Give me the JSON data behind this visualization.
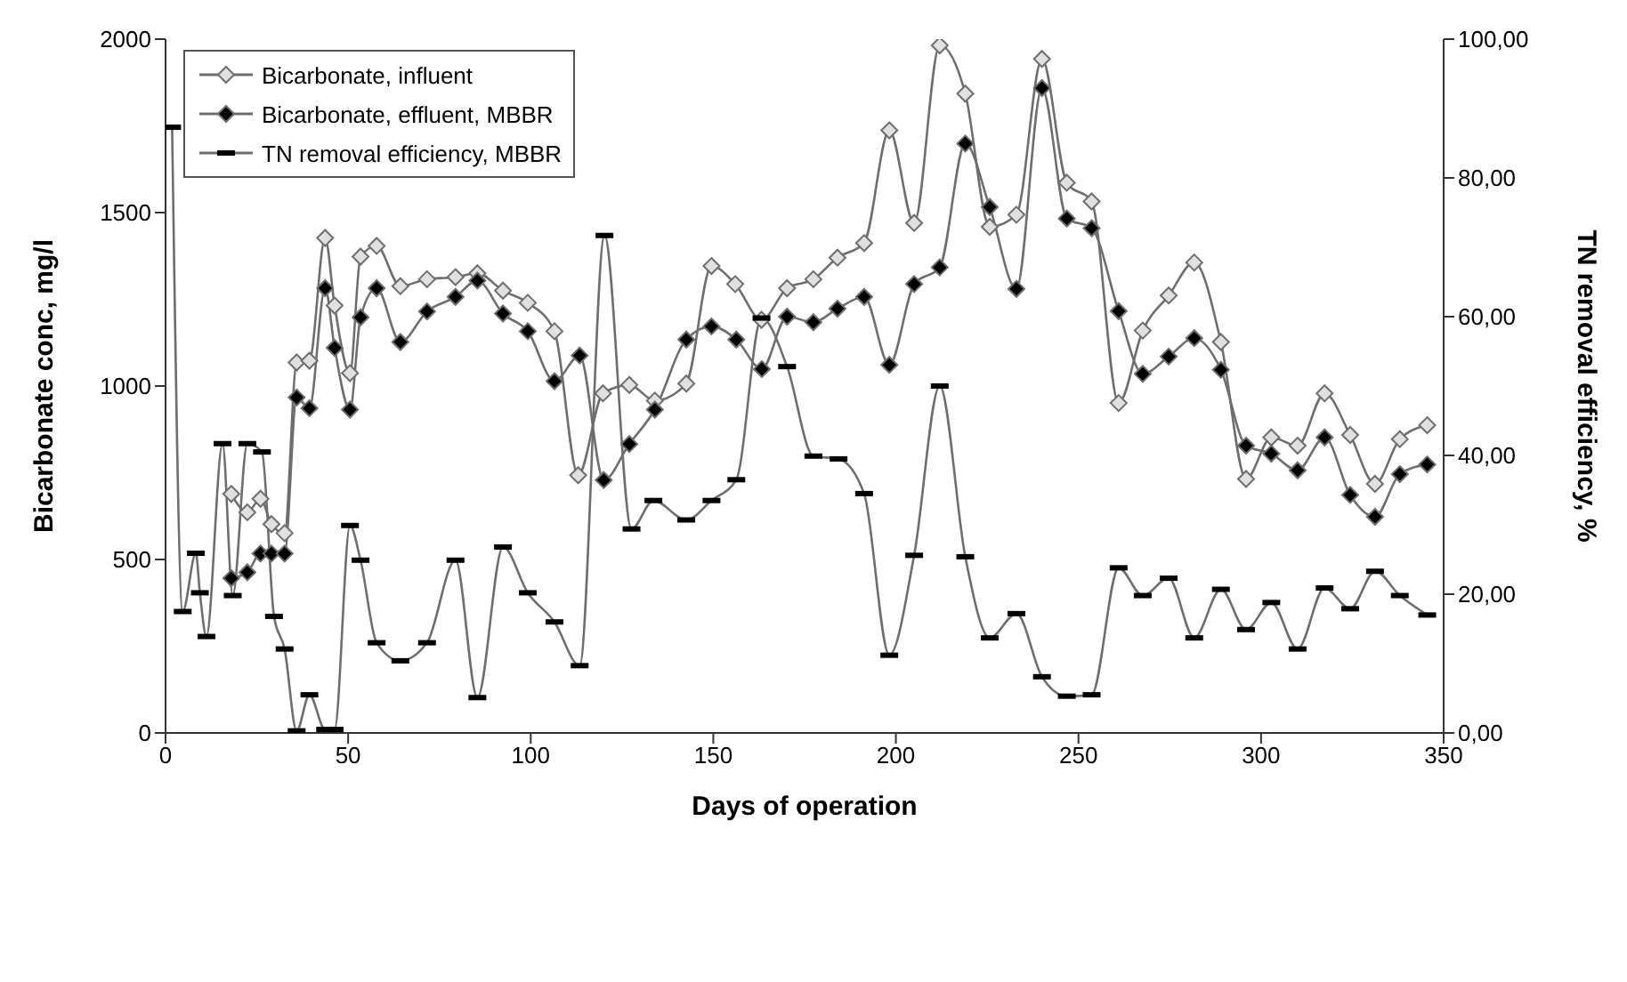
{
  "chart_data": {
    "type": "line",
    "xlabel": "Days of operation",
    "ylabel": "Bicarbonate conc, mg/l",
    "y2label": "TN removal efficiency, %",
    "xlim": [
      0,
      350
    ],
    "xticks": [
      0,
      50,
      100,
      150,
      200,
      250,
      300,
      350
    ],
    "ylim": [
      0,
      2000
    ],
    "yticks": [
      0,
      500,
      1000,
      1500,
      2000
    ],
    "y2lim": [
      0,
      100
    ],
    "y2ticks": [
      {
        "value": 0,
        "label": "0,00"
      },
      {
        "value": 20,
        "label": "20,00"
      },
      {
        "value": 40,
        "label": "40,00"
      },
      {
        "value": 60,
        "label": "60,00"
      },
      {
        "value": 80,
        "label": "80,00"
      },
      {
        "value": 100,
        "label": "100,00"
      }
    ],
    "legend": "top left",
    "series": [
      {
        "name": "Bicarbonate, influent",
        "color": "#e0e0e0",
        "marker": "diamond",
        "x": [
          18,
          22.4,
          26,
          29,
          32.6,
          35.9,
          39.4,
          43.7,
          46.3,
          50.5,
          53.4,
          57.8,
          64.3,
          71.6,
          79.4,
          85.4,
          92.4,
          99.2,
          106.5,
          113,
          119.8,
          127,
          134,
          142.6,
          149.5,
          156,
          163.2,
          170.2,
          177.4,
          184,
          191.3,
          198.2,
          205,
          212,
          219,
          225.7,
          233,
          240,
          246.8,
          253.6,
          261,
          267.6,
          274.7,
          281.7,
          289,
          295.9,
          302.8,
          310,
          317.4,
          324.4,
          331.2,
          338,
          345.5
        ],
        "values": [
          689,
          636,
          675,
          602,
          576,
          1068,
          1073,
          1427,
          1232,
          1037,
          1373,
          1404,
          1288,
          1308,
          1314,
          1325,
          1275,
          1240,
          1158,
          743,
          979,
          1003,
          958,
          1007,
          1346,
          1294,
          1191,
          1282,
          1308,
          1370,
          1412,
          1737,
          1470,
          1982,
          1843,
          1459,
          1494,
          1943,
          1586,
          1532,
          951,
          1160,
          1261,
          1356,
          1127,
          732,
          852,
          828,
          979,
          859,
          718,
          847,
          887
        ]
      },
      {
        "name": "Bicarbonate, effluent, MBBR",
        "color": "#000000",
        "marker": "diamond",
        "x": [
          18,
          22.4,
          26,
          29,
          32.6,
          35.9,
          39.4,
          43.7,
          46.3,
          50.5,
          53.4,
          57.8,
          64.3,
          71.6,
          79.4,
          85.4,
          92.4,
          99.2,
          106.5,
          113.4,
          120,
          127,
          134,
          142.6,
          149.5,
          156.3,
          163.3,
          170.2,
          177.4,
          184,
          191.3,
          198.2,
          205,
          212,
          219,
          225.7,
          233,
          240,
          246.8,
          253.6,
          261,
          267.6,
          274.7,
          281.7,
          289,
          295.9,
          302.8,
          310,
          317.4,
          324.4,
          331.2,
          338,
          345.5
        ],
        "values": [
          446,
          463,
          517,
          517,
          517,
          967,
          936,
          1282,
          1110,
          932,
          1198,
          1282,
          1127,
          1215,
          1257,
          1304,
          1209,
          1158,
          1014,
          1088,
          729,
          833,
          932,
          1134,
          1172,
          1134,
          1049,
          1200,
          1184,
          1223,
          1257,
          1061,
          1294,
          1342,
          1699,
          1516,
          1280,
          1859,
          1483,
          1455,
          1216,
          1035,
          1085,
          1138,
          1047,
          828,
          805,
          757,
          852,
          686,
          623,
          746,
          774
        ]
      },
      {
        "name": "TN removal efficiency, MBBR",
        "color": "#000000",
        "marker": "square",
        "axis": "y2",
        "x": [
          1.8,
          4.7,
          8.3,
          9.4,
          11.2,
          15.6,
          18.4,
          22.4,
          26.4,
          29.7,
          32.6,
          35.9,
          39.4,
          43.7,
          46.3,
          50.5,
          53.4,
          57.8,
          64.3,
          71.6,
          79.4,
          85.4,
          92.4,
          99.2,
          106.5,
          113.4,
          120.2,
          127.6,
          133.6,
          142.6,
          149.5,
          156.3,
          163.2,
          170.2,
          177.4,
          184.3,
          191.3,
          198.2,
          205,
          212,
          219,
          225.7,
          233,
          240,
          246.8,
          253.6,
          261,
          267.6,
          274.7,
          281.7,
          289,
          295.9,
          302.8,
          310,
          317.4,
          324.4,
          331.2,
          338,
          345.5
        ],
        "values": [
          87.3,
          17.5,
          25.9,
          20.2,
          13.9,
          41.7,
          19.8,
          41.7,
          40.5,
          16.8,
          12.1,
          0.3,
          5.5,
          0.5,
          0.5,
          29.9,
          24.9,
          13,
          10.4,
          13,
          24.9,
          5.1,
          26.8,
          20.2,
          16,
          9.7,
          71.7,
          29.4,
          33.5,
          30.7,
          33.5,
          36.5,
          59.8,
          52.8,
          39.9,
          39.5,
          34.5,
          11.2,
          25.6,
          50,
          25.4,
          13.7,
          17.2,
          8.1,
          5.3,
          5.5,
          23.8,
          19.8,
          22.3,
          13.7,
          20.7,
          14.9,
          18.8,
          12.1,
          20.9,
          17.9,
          23.3,
          19.8,
          17
        ]
      }
    ]
  }
}
